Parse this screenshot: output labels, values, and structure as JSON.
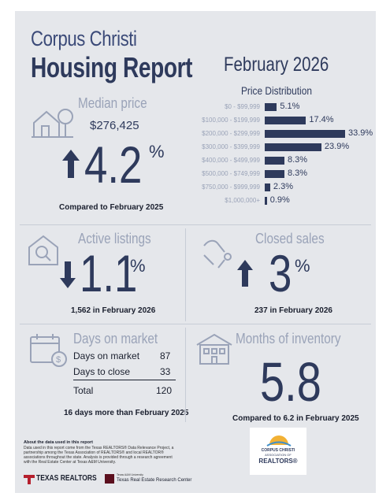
{
  "header": {
    "city": "Corpus Christi",
    "title": "Housing Report",
    "month": "February 2026"
  },
  "median_price": {
    "heading": "Median price",
    "value": "$276,425",
    "change": "4.2",
    "pct": "%",
    "direction": "up",
    "caption": "Compared to February 2025"
  },
  "price_distribution": {
    "title": "Price Distribution",
    "rows": [
      {
        "range": "$0 - $99,999",
        "pct": "5.1%"
      },
      {
        "range": "$100,000 - $199,999",
        "pct": "17.4%"
      },
      {
        "range": "$200,000 - $299,999",
        "pct": "33.9%"
      },
      {
        "range": "$300,000 - $399,999",
        "pct": "23.9%"
      },
      {
        "range": "$400,000 - $499,999",
        "pct": "8.3%"
      },
      {
        "range": "$500,000 - $749,999",
        "pct": "8.3%"
      },
      {
        "range": "$750,000 - $999,999",
        "pct": "2.3%"
      },
      {
        "range": "$1,000,000+",
        "pct": "0.9%"
      }
    ]
  },
  "chart_data": {
    "type": "bar",
    "categories": [
      "$0 - $99,999",
      "$100,000 - $199,999",
      "$200,000 - $299,999",
      "$300,000 - $399,999",
      "$400,000 - $499,999",
      "$500,000 - $749,999",
      "$750,000 - $999,999",
      "$1,000,000+"
    ],
    "values": [
      5.1,
      17.4,
      33.9,
      23.9,
      8.3,
      8.3,
      2.3,
      0.9
    ],
    "title": "Price Distribution",
    "orientation": "horizontal",
    "grid": false
  },
  "active_listings": {
    "heading": "Active listings",
    "change": "1.1",
    "pct": "%",
    "direction": "down",
    "caption": "1,562 in February 2026"
  },
  "closed_sales": {
    "heading": "Closed sales",
    "change": "3",
    "pct": "%",
    "direction": "up",
    "caption": "237 in February 2026"
  },
  "days_on_market": {
    "heading": "Days on market",
    "rows": [
      {
        "label": "Days on market",
        "value": "87"
      },
      {
        "label": "Days to close",
        "value": "33"
      }
    ],
    "total_label": "Total",
    "total_value": "120",
    "caption": "16 days more than February 2025"
  },
  "months_inventory": {
    "heading": "Months of inventory",
    "value": "5.8",
    "caption": "Compared to 6.2 in February 2025"
  },
  "footer": {
    "about_title": "About the data used in this report",
    "about_lines": [
      "Data used in this report come from the Texas REALTORS® Data Relevance Project, a",
      "partnership among the Texas Association of REALTORS® and local REALTOR®",
      "associations throughout the state. Analysis is provided through a research agreement",
      "with the Real Estate Center at Texas A&M University."
    ],
    "texas_realtors": "TEXAS REALTORS",
    "research_center_small": "Texas A&M University",
    "research_center": "Texas Real Estate Research Center",
    "assoc_line1": "CORPUS CHRISTI",
    "assoc_line2": "ASSOCIATION OF",
    "assoc_line3": "REALTORS®"
  },
  "colors": {
    "navy": "#2e3a5c",
    "muted": "#9aa3b8",
    "background": "#e5e7eb"
  }
}
